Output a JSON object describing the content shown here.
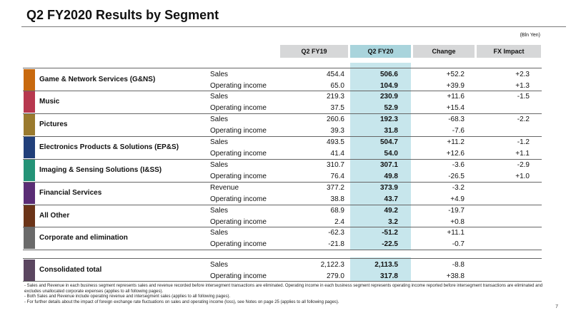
{
  "title": "Q2 FY2020  Results by Segment",
  "units": "(Bln Yen)",
  "headers": {
    "q19": "Q2 FY19",
    "q20": "Q2 FY20",
    "change": "Change",
    "fx": "FX Impact"
  },
  "segments": [
    {
      "name": "Game & Network Services (G&NS)",
      "color": "#c8690e",
      "rows": [
        {
          "metric": "Sales",
          "q19": "454.4",
          "q20": "506.6",
          "change": "+52.2",
          "fx": "+2.3"
        },
        {
          "metric": "Operating income",
          "q19": "65.0",
          "q20": "104.9",
          "change": "+39.9",
          "fx": "+1.3"
        }
      ]
    },
    {
      "name": "Music",
      "color": "#b7384f",
      "rows": [
        {
          "metric": "Sales",
          "q19": "219.3",
          "q20": "230.9",
          "change": "+11.6",
          "fx": "-1.5"
        },
        {
          "metric": "Operating income",
          "q19": "37.5",
          "q20": "52.9",
          "change": "+15.4",
          "fx": ""
        }
      ]
    },
    {
      "name": "Pictures",
      "color": "#9a7a2e",
      "rows": [
        {
          "metric": "Sales",
          "q19": "260.6",
          "q20": "192.3",
          "change": "-68.3",
          "fx": "-2.2"
        },
        {
          "metric": "Operating income",
          "q19": "39.3",
          "q20": "31.8",
          "change": "-7.6",
          "fx": ""
        }
      ]
    },
    {
      "name": "Electronics Products & Solutions (EP&S)",
      "color": "#213f7a",
      "rows": [
        {
          "metric": "Sales",
          "q19": "493.5",
          "q20": "504.7",
          "change": "+11.2",
          "fx": "-1.2"
        },
        {
          "metric": "Operating income",
          "q19": "41.4",
          "q20": "54.0",
          "change": "+12.6",
          "fx": "+1.1"
        }
      ]
    },
    {
      "name": "Imaging & Sensing Solutions (I&SS)",
      "color": "#249377",
      "rows": [
        {
          "metric": "Sales",
          "q19": "310.7",
          "q20": "307.1",
          "change": "-3.6",
          "fx": "-2.9"
        },
        {
          "metric": "Operating income",
          "q19": "76.4",
          "q20": "49.8",
          "change": "-26.5",
          "fx": "+1.0"
        }
      ]
    },
    {
      "name": "Financial Services",
      "color": "#5a2d75",
      "rows": [
        {
          "metric": "Revenue",
          "q19": "377.2",
          "q20": "373.9",
          "change": "-3.2",
          "fx": ""
        },
        {
          "metric": "Operating income",
          "q19": "38.8",
          "q20": "43.7",
          "change": "+4.9",
          "fx": ""
        }
      ]
    },
    {
      "name": "All Other",
      "color": "#6b3418",
      "rows": [
        {
          "metric": "Sales",
          "q19": "68.9",
          "q20": "49.2",
          "change": "-19.7",
          "fx": ""
        },
        {
          "metric": "Operating income",
          "q19": "2.4",
          "q20": "3.2",
          "change": "+0.8",
          "fx": ""
        }
      ]
    },
    {
      "name": "Corporate and elimination",
      "color": "#6a6a6a",
      "rows": [
        {
          "metric": "Sales",
          "q19": "-62.3",
          "q20": "-51.2",
          "change": "+11.1",
          "fx": ""
        },
        {
          "metric": "Operating income",
          "q19": "-21.8",
          "q20": "-22.5",
          "change": "-0.7",
          "fx": ""
        }
      ]
    },
    {
      "name": "Consolidated total",
      "color": "#5b4660",
      "rows": [
        {
          "metric": "Sales",
          "q19": "2,122.3",
          "q20": "2,113.5",
          "change": "-8.8",
          "fx": ""
        },
        {
          "metric": "Operating income",
          "q19": "279.0",
          "q20": "317.8",
          "change": "+38.8",
          "fx": ""
        }
      ]
    }
  ],
  "footnotes": [
    "- Sales and Revenue in each business segment represents sales and revenue recorded before intersegment transactions are eliminated. Operating income in each business segment represents operating income reported before intersegment transactions are eliminated and excludes unallocated corporate expenses (applies to all following pages).",
    "- Both Sales and Revenue include operating revenue and intersegment sales (applies to all following pages).",
    "- For further details about the impact of foreign exchange rate fluctuations on sales and operating income (loss), see Notes on page 25 (applies to all following pages)."
  ],
  "page_number": "7"
}
